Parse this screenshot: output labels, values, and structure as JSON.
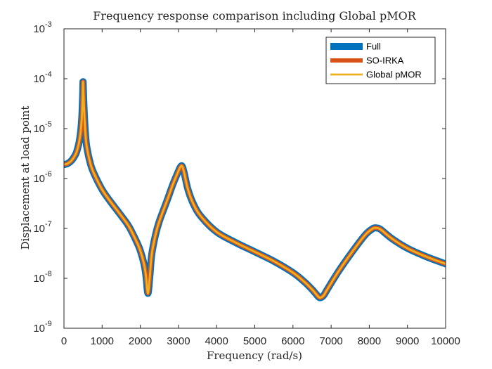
{
  "chart_data": {
    "type": "line",
    "title": "Frequency response comparison including Global pMOR",
    "xlabel": "Frequency (rad/s)",
    "ylabel": "Displacement at load point",
    "xlim": [
      0,
      10000
    ],
    "ylim": [
      1e-09,
      0.001
    ],
    "yscale": "log",
    "grid": false,
    "legend_position": "top-right",
    "x_ticks": [
      {
        "value": 0,
        "label": "0"
      },
      {
        "value": 1000,
        "label": "1000"
      },
      {
        "value": 2000,
        "label": "2000"
      },
      {
        "value": 3000,
        "label": "3000"
      },
      {
        "value": 4000,
        "label": "4000"
      },
      {
        "value": 5000,
        "label": "5000"
      },
      {
        "value": 6000,
        "label": "6000"
      },
      {
        "value": 7000,
        "label": "7000"
      },
      {
        "value": 8000,
        "label": "8000"
      },
      {
        "value": 9000,
        "label": "9000"
      },
      {
        "value": 10000,
        "label": "10000"
      }
    ],
    "y_ticks": [
      {
        "value": 1e-09,
        "base": "10",
        "exponent": "-9"
      },
      {
        "value": 1e-08,
        "base": "10",
        "exponent": "-8"
      },
      {
        "value": 1e-07,
        "base": "10",
        "exponent": "-7"
      },
      {
        "value": 1e-06,
        "base": "10",
        "exponent": "-6"
      },
      {
        "value": 1e-05,
        "base": "10",
        "exponent": "-5"
      },
      {
        "value": 0.0001,
        "base": "10",
        "exponent": "-4"
      },
      {
        "value": 0.001,
        "base": "10",
        "exponent": "-3"
      }
    ],
    "x": [
      0,
      100,
      200,
      300,
      350,
      400,
      440,
      470,
      490,
      500,
      510,
      530,
      560,
      600,
      700,
      800,
      1000,
      1200,
      1500,
      1700,
      1900,
      2000,
      2100,
      2150,
      2200,
      2250,
      2300,
      2400,
      2500,
      2700,
      2850,
      2950,
      3050,
      3100,
      3150,
      3250,
      3400,
      3600,
      4000,
      4500,
      5000,
      5500,
      6000,
      6300,
      6500,
      6600,
      6700,
      6800,
      6900,
      7200,
      7600,
      7900,
      8100,
      8200,
      8300,
      8600,
      9000,
      9500,
      10000
    ],
    "series": [
      {
        "name": "Full",
        "color": "#0072BD",
        "values": [
          1.9e-06,
          2e-06,
          2.3e-06,
          3e-06,
          3.8e-06,
          5.5e-06,
          9e-06,
          1.8e-05,
          4.5e-05,
          8.7e-05,
          5.5e-05,
          2.2e-05,
          8.5e-06,
          4.2e-06,
          1.9e-06,
          1.2e-06,
          6e-07,
          3.6e-07,
          1.8e-07,
          1.1e-07,
          5.5e-08,
          3.6e-08,
          1.9e-08,
          1.1e-08,
          5e-09,
          1.1e-08,
          3e-08,
          7.5e-08,
          1.4e-07,
          3.6e-07,
          7.5e-07,
          1.15e-06,
          1.7e-06,
          1.75e-06,
          1.3e-06,
          6e-07,
          3e-07,
          1.7e-07,
          8.5e-08,
          5.2e-08,
          3.4e-08,
          2.2e-08,
          1.3e-08,
          8.5e-09,
          6e-09,
          4.9e-09,
          4.1e-09,
          4.5e-09,
          6e-09,
          1.4e-08,
          3.8e-08,
          7.5e-08,
          1e-07,
          1.02e-07,
          9.5e-08,
          6.2e-08,
          4e-08,
          2.7e-08,
          1.95e-08
        ]
      },
      {
        "name": "SO-IRKA",
        "color": "#D95319",
        "values": [
          1.9e-06,
          2e-06,
          2.3e-06,
          3e-06,
          3.8e-06,
          5.5e-06,
          9e-06,
          1.8e-05,
          4.5e-05,
          8.7e-05,
          5.5e-05,
          2.2e-05,
          8.5e-06,
          4.2e-06,
          1.9e-06,
          1.2e-06,
          6e-07,
          3.6e-07,
          1.8e-07,
          1.1e-07,
          5.5e-08,
          3.6e-08,
          1.9e-08,
          1.1e-08,
          5e-09,
          1.1e-08,
          3e-08,
          7.5e-08,
          1.4e-07,
          3.6e-07,
          7.5e-07,
          1.15e-06,
          1.7e-06,
          1.75e-06,
          1.3e-06,
          6e-07,
          3e-07,
          1.7e-07,
          8.5e-08,
          5.2e-08,
          3.4e-08,
          2.2e-08,
          1.3e-08,
          8.5e-09,
          6e-09,
          4.9e-09,
          4.1e-09,
          4.5e-09,
          6e-09,
          1.4e-08,
          3.8e-08,
          7.5e-08,
          1e-07,
          1.02e-07,
          9.5e-08,
          6.2e-08,
          4e-08,
          2.7e-08,
          1.95e-08
        ]
      },
      {
        "name": "Global pMOR",
        "color": "#EDB120",
        "values": [
          1.9e-06,
          2e-06,
          2.3e-06,
          3e-06,
          3.8e-06,
          5.5e-06,
          9e-06,
          1.8e-05,
          4.5e-05,
          8.7e-05,
          5.5e-05,
          2.2e-05,
          8.5e-06,
          4.2e-06,
          1.9e-06,
          1.2e-06,
          6e-07,
          3.6e-07,
          1.8e-07,
          1.1e-07,
          5.5e-08,
          3.6e-08,
          1.9e-08,
          1.1e-08,
          5e-09,
          1.1e-08,
          3e-08,
          7.5e-08,
          1.4e-07,
          3.6e-07,
          7.5e-07,
          1.15e-06,
          1.7e-06,
          1.75e-06,
          1.3e-06,
          6e-07,
          3e-07,
          1.7e-07,
          8.5e-08,
          5.2e-08,
          3.4e-08,
          2.2e-08,
          1.3e-08,
          8.5e-09,
          6e-09,
          4.9e-09,
          4.1e-09,
          4.5e-09,
          6e-09,
          1.4e-08,
          3.8e-08,
          7.5e-08,
          1e-07,
          1.02e-07,
          9.5e-08,
          6.2e-08,
          4e-08,
          2.7e-08,
          1.95e-08
        ]
      }
    ]
  }
}
